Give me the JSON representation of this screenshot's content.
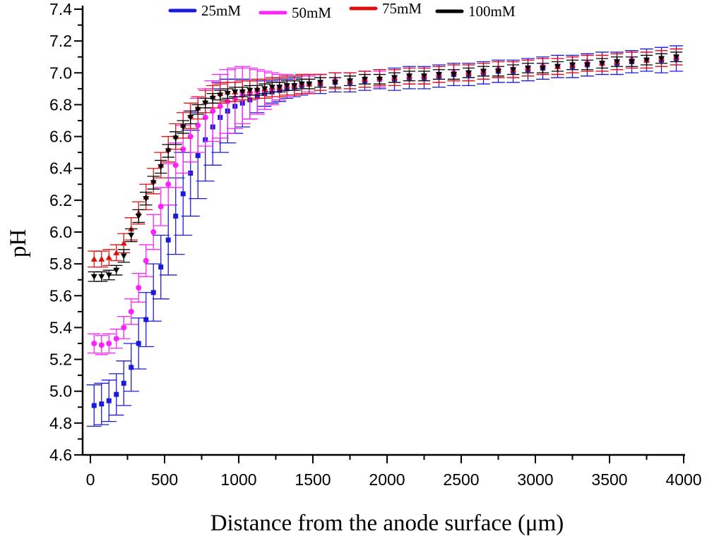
{
  "chart_data": {
    "type": "scatter",
    "title": "",
    "xlabel": "Distance from the anode surface (μm)",
    "ylabel": "pH",
    "xlim": [
      0,
      4000
    ],
    "ylim": [
      4.6,
      7.4
    ],
    "xticks": [
      "0",
      "500",
      "1000",
      "1500",
      "2000",
      "2500",
      "3000",
      "3500",
      "4000"
    ],
    "yticks": [
      "4.6",
      "4.8",
      "5.0",
      "5.2",
      "5.4",
      "5.6",
      "5.8",
      "6.0",
      "6.2",
      "6.4",
      "6.6",
      "6.8",
      "7.0",
      "7.2",
      "7.4"
    ],
    "grid": false,
    "legend_position": "top",
    "x": [
      25,
      75,
      125,
      175,
      225,
      275,
      325,
      375,
      425,
      475,
      525,
      575,
      625,
      675,
      725,
      775,
      825,
      875,
      925,
      975,
      1025,
      1075,
      1125,
      1175,
      1225,
      1275,
      1325,
      1375,
      1425,
      1475,
      1550,
      1650,
      1750,
      1850,
      1950,
      2050,
      2150,
      2250,
      2350,
      2450,
      2550,
      2650,
      2750,
      2850,
      2950,
      3050,
      3150,
      3250,
      3350,
      3450,
      3550,
      3650,
      3750,
      3850,
      3950
    ],
    "series": [
      {
        "name": "25mM",
        "color": "#1a1adc",
        "marker": "square",
        "values": [
          4.91,
          4.92,
          4.94,
          4.98,
          5.05,
          5.15,
          5.3,
          5.45,
          5.62,
          5.78,
          5.95,
          6.1,
          6.24,
          6.37,
          6.48,
          6.58,
          6.66,
          6.72,
          6.76,
          6.79,
          6.81,
          6.83,
          6.85,
          6.87,
          6.88,
          6.89,
          6.9,
          6.91,
          6.92,
          6.93,
          6.93,
          6.94,
          6.94,
          6.95,
          6.96,
          6.96,
          6.97,
          6.97,
          6.98,
          6.99,
          6.99,
          7.0,
          7.01,
          7.01,
          7.02,
          7.03,
          7.04,
          7.04,
          7.05,
          7.06,
          7.06,
          7.07,
          7.08,
          7.08,
          7.09
        ],
        "errors": [
          0.13,
          0.13,
          0.13,
          0.13,
          0.14,
          0.15,
          0.16,
          0.17,
          0.18,
          0.2,
          0.22,
          0.24,
          0.26,
          0.27,
          0.27,
          0.26,
          0.24,
          0.22,
          0.2,
          0.17,
          0.15,
          0.12,
          0.1,
          0.08,
          0.07,
          0.07,
          0.06,
          0.06,
          0.06,
          0.06,
          0.06,
          0.06,
          0.06,
          0.06,
          0.06,
          0.07,
          0.07,
          0.07,
          0.07,
          0.07,
          0.07,
          0.07,
          0.07,
          0.07,
          0.07,
          0.07,
          0.07,
          0.07,
          0.07,
          0.07,
          0.07,
          0.07,
          0.07,
          0.08,
          0.08
        ]
      },
      {
        "name": "50mM",
        "color": "#ff22ff",
        "marker": "circle",
        "values": [
          5.3,
          5.29,
          5.3,
          5.33,
          5.4,
          5.5,
          5.65,
          5.82,
          6.0,
          6.16,
          6.3,
          6.42,
          6.52,
          6.6,
          6.67,
          6.72,
          6.76,
          6.79,
          6.82,
          6.84,
          6.86,
          6.87,
          6.88,
          6.89,
          6.9,
          6.91,
          6.92,
          6.92,
          6.93,
          6.93,
          6.94,
          6.95,
          6.95,
          6.96,
          6.96,
          6.97,
          6.98,
          6.98,
          6.99,
          7.0,
          7.0,
          7.01,
          7.02,
          7.02,
          7.03,
          7.04,
          7.04,
          7.05,
          7.06,
          7.06,
          7.07,
          7.08,
          7.08,
          7.09,
          7.1
        ],
        "errors": [
          0.06,
          0.06,
          0.06,
          0.06,
          0.07,
          0.08,
          0.09,
          0.1,
          0.11,
          0.12,
          0.13,
          0.14,
          0.15,
          0.16,
          0.17,
          0.18,
          0.19,
          0.2,
          0.2,
          0.19,
          0.18,
          0.16,
          0.14,
          0.12,
          0.1,
          0.08,
          0.07,
          0.06,
          0.06,
          0.05,
          0.05,
          0.05,
          0.05,
          0.05,
          0.05,
          0.05,
          0.05,
          0.05,
          0.05,
          0.05,
          0.05,
          0.05,
          0.05,
          0.05,
          0.05,
          0.05,
          0.05,
          0.05,
          0.05,
          0.05,
          0.05,
          0.05,
          0.05,
          0.05,
          0.05
        ]
      },
      {
        "name": "75mM",
        "color": "#e01010",
        "marker": "triangle-up",
        "values": [
          5.83,
          5.83,
          5.84,
          5.87,
          5.93,
          6.02,
          6.12,
          6.22,
          6.32,
          6.42,
          6.52,
          6.6,
          6.67,
          6.73,
          6.78,
          6.82,
          6.85,
          6.87,
          6.88,
          6.88,
          6.89,
          6.89,
          6.9,
          6.9,
          6.91,
          6.91,
          6.92,
          6.92,
          6.93,
          6.93,
          6.94,
          6.95,
          6.95,
          6.96,
          6.97,
          6.97,
          6.98,
          6.98,
          6.99,
          7.0,
          7.0,
          7.01,
          7.02,
          7.02,
          7.03,
          7.04,
          7.04,
          7.05,
          7.06,
          7.06,
          7.07,
          7.08,
          7.08,
          7.09,
          7.1
        ],
        "errors": [
          0.05,
          0.05,
          0.05,
          0.05,
          0.06,
          0.07,
          0.07,
          0.08,
          0.08,
          0.08,
          0.08,
          0.08,
          0.08,
          0.08,
          0.07,
          0.07,
          0.07,
          0.06,
          0.06,
          0.06,
          0.06,
          0.06,
          0.06,
          0.06,
          0.06,
          0.06,
          0.06,
          0.06,
          0.06,
          0.06,
          0.05,
          0.05,
          0.05,
          0.05,
          0.05,
          0.05,
          0.05,
          0.05,
          0.05,
          0.05,
          0.05,
          0.05,
          0.05,
          0.05,
          0.05,
          0.05,
          0.05,
          0.05,
          0.05,
          0.05,
          0.05,
          0.05,
          0.05,
          0.05,
          0.05
        ]
      },
      {
        "name": "100mM",
        "color": "#000000",
        "marker": "triangle-down",
        "values": [
          5.72,
          5.72,
          5.73,
          5.76,
          5.85,
          5.98,
          6.1,
          6.21,
          6.31,
          6.41,
          6.51,
          6.59,
          6.66,
          6.72,
          6.77,
          6.81,
          6.84,
          6.86,
          6.87,
          6.88,
          6.88,
          6.89,
          6.89,
          6.9,
          6.91,
          6.91,
          6.92,
          6.92,
          6.93,
          6.93,
          6.94,
          6.94,
          6.95,
          6.96,
          6.96,
          6.97,
          6.98,
          6.98,
          6.99,
          6.99,
          7.0,
          7.01,
          7.01,
          7.02,
          7.03,
          7.03,
          7.04,
          7.05,
          7.05,
          7.06,
          7.07,
          7.07,
          7.08,
          7.09,
          7.1
        ],
        "errors": [
          0.03,
          0.03,
          0.03,
          0.03,
          0.04,
          0.04,
          0.04,
          0.04,
          0.04,
          0.04,
          0.04,
          0.04,
          0.04,
          0.04,
          0.03,
          0.03,
          0.03,
          0.03,
          0.03,
          0.03,
          0.03,
          0.03,
          0.03,
          0.03,
          0.03,
          0.03,
          0.03,
          0.03,
          0.03,
          0.03,
          0.03,
          0.03,
          0.03,
          0.03,
          0.03,
          0.03,
          0.03,
          0.03,
          0.03,
          0.03,
          0.03,
          0.03,
          0.03,
          0.03,
          0.03,
          0.03,
          0.03,
          0.03,
          0.03,
          0.03,
          0.03,
          0.03,
          0.03,
          0.03,
          0.03
        ]
      }
    ]
  }
}
